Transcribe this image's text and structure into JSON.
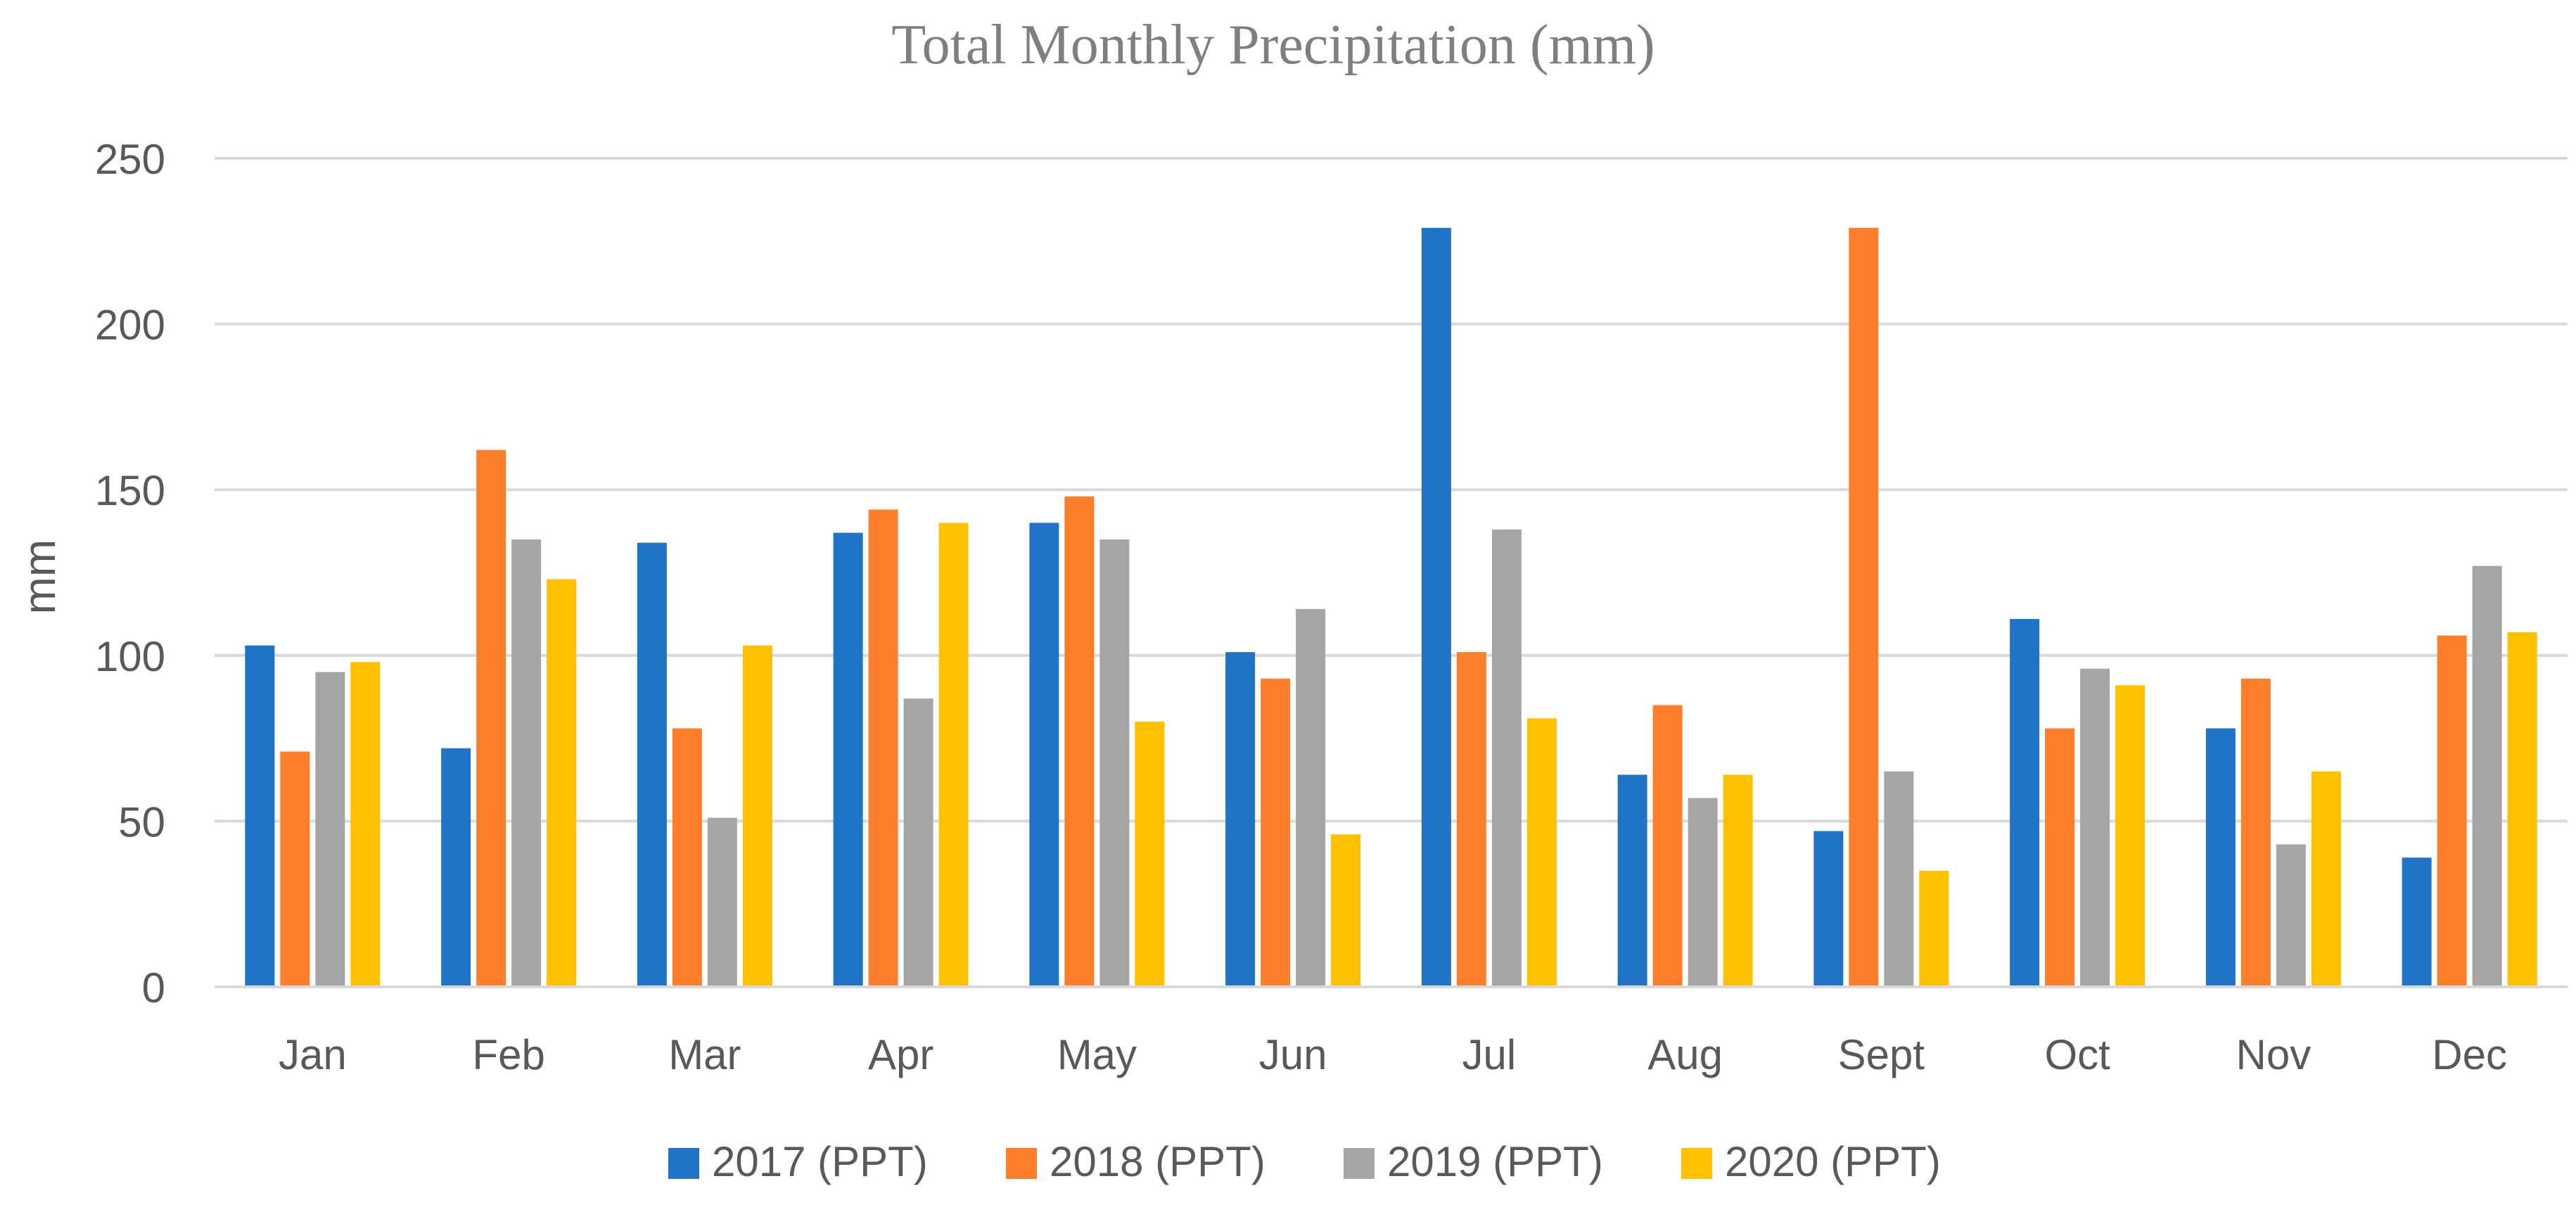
{
  "chart_data": {
    "type": "bar",
    "title": "Total Monthly Precipitation (mm)",
    "xlabel": "",
    "ylabel": "mm",
    "ylim": [
      0,
      250
    ],
    "yticks": [
      0,
      50,
      100,
      150,
      200,
      250
    ],
    "grid": true,
    "legend_position": "bottom",
    "categories": [
      "Jan",
      "Feb",
      "Mar",
      "Apr",
      "May",
      "Jun",
      "Jul",
      "Aug",
      "Sept",
      "Oct",
      "Nov",
      "Dec"
    ],
    "series": [
      {
        "name": "2017 (PPT)",
        "color": "#1f74c8",
        "values": [
          103,
          72,
          134,
          137,
          140,
          101,
          229,
          64,
          47,
          111,
          78,
          39
        ]
      },
      {
        "name": "2018 (PPT)",
        "color": "#fd7f2c",
        "values": [
          71,
          162,
          78,
          144,
          148,
          93,
          101,
          85,
          229,
          78,
          93,
          106
        ]
      },
      {
        "name": "2019 (PPT)",
        "color": "#a5a5a5",
        "values": [
          95,
          135,
          51,
          87,
          135,
          114,
          138,
          57,
          65,
          96,
          43,
          127
        ]
      },
      {
        "name": "2020 (PPT)",
        "color": "#ffc000",
        "values": [
          98,
          123,
          103,
          140,
          80,
          46,
          81,
          64,
          35,
          91,
          65,
          107
        ]
      }
    ]
  }
}
